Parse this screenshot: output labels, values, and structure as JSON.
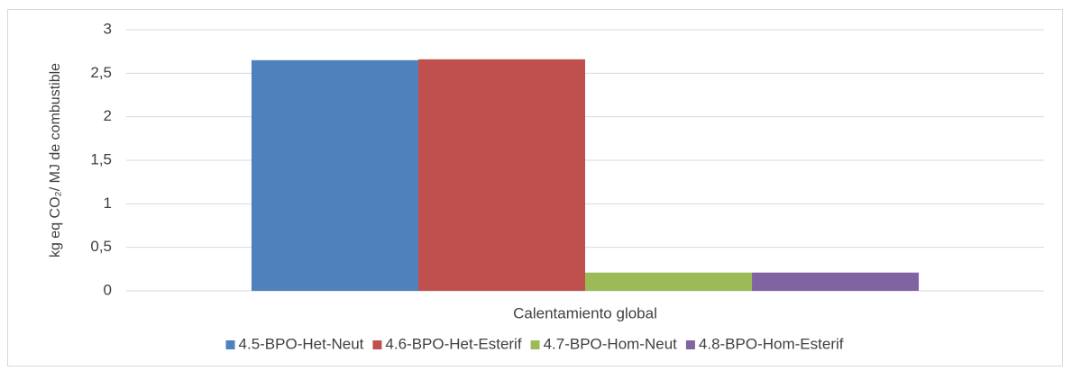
{
  "chart_data": {
    "type": "bar",
    "y_label": "kg eq CO₂/ MJ de combustible",
    "categories": [
      "Calentamiento global"
    ],
    "series": [
      {
        "name": "4.5-BPO-Het-Neut",
        "color": "#4f81bd",
        "values": [
          2.65
        ]
      },
      {
        "name": "4.6-BPO-Het-Esterif",
        "color": "#c0504d",
        "values": [
          2.66
        ]
      },
      {
        "name": "4.7-BPO-Hom-Neut",
        "color": "#9bbb59",
        "values": [
          0.21
        ]
      },
      {
        "name": "4.8-BPO-Hom-Esterif",
        "color": "#8064a2",
        "values": [
          0.21
        ]
      }
    ],
    "ylim": [
      0,
      3
    ],
    "yticks": [
      0,
      {
        "value": 0.5,
        "label": "0,5"
      },
      1,
      {
        "value": 1.5,
        "label": "1,5"
      },
      2,
      {
        "value": 2.5,
        "label": "2,5"
      },
      3
    ],
    "grid": true,
    "legend": "bottom"
  }
}
